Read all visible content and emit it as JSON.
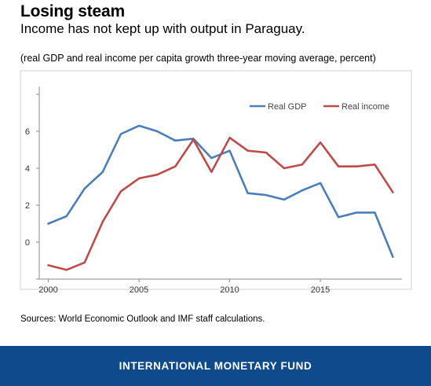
{
  "header": {
    "title": "Losing steam",
    "subtitle": "Income has not kept up with output in Paraguay.",
    "note": "(real GDP and real income per capita growth three-year moving average, percent)"
  },
  "sources": "Sources: World Economic Outlook and IMF staff calculations.",
  "footer": {
    "label": "INTERNATIONAL MONETARY FUND",
    "bg_color": "#0e4a8c"
  },
  "chart_data": {
    "type": "line",
    "x": [
      2000,
      2001,
      2002,
      2003,
      2004,
      2005,
      2006,
      2007,
      2008,
      2009,
      2010,
      2011,
      2012,
      2013,
      2014,
      2015,
      2016,
      2017,
      2018,
      2019
    ],
    "series": [
      {
        "name": "Real GDP",
        "color": "#4a7ebb",
        "values": [
          1.0,
          1.4,
          2.9,
          3.8,
          5.85,
          6.3,
          6.0,
          5.5,
          5.6,
          4.55,
          4.95,
          2.65,
          2.55,
          2.3,
          2.8,
          3.2,
          1.35,
          1.6,
          1.6,
          -0.8
        ]
      },
      {
        "name": "Real income",
        "color": "#be4b48",
        "values": [
          -1.25,
          -1.5,
          -1.1,
          1.1,
          2.75,
          3.45,
          3.65,
          4.1,
          5.55,
          3.8,
          5.65,
          4.95,
          4.85,
          4.0,
          4.2,
          5.4,
          4.1,
          4.1,
          4.2,
          2.7
        ]
      }
    ],
    "x_ticks": [
      "2000",
      "2005",
      "2010",
      "2015"
    ],
    "y_ticks": [
      "0",
      "2",
      "4",
      "6"
    ],
    "xlim": [
      1999.5,
      2019.5
    ],
    "ylim": [
      -2,
      8
    ],
    "grid": false,
    "legend_position": "top-right"
  }
}
